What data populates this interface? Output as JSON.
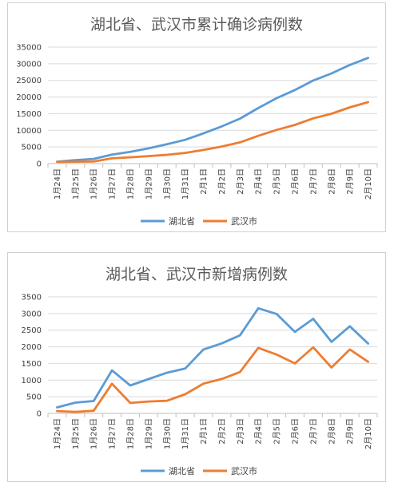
{
  "colors": {
    "hubei": "#5b9bd5",
    "wuhan": "#ed7d31",
    "grid": "#d9d9d9",
    "text": "#595959"
  },
  "chart_data": [
    {
      "type": "line",
      "title": "湖北省、武汉市累计确诊病例数",
      "categories": [
        "1月24日",
        "1月25日",
        "1月26日",
        "1月27日",
        "1月28日",
        "1月29日",
        "1月30日",
        "1月31日",
        "2月1日",
        "2月2日",
        "2月3日",
        "2月4日",
        "2月5日",
        "2月6日",
        "2月7日",
        "2月8日",
        "2月9日",
        "2月10日"
      ],
      "ylim": [
        0,
        35000
      ],
      "yticks": [
        0,
        5000,
        10000,
        15000,
        20000,
        25000,
        30000,
        35000
      ],
      "grid": true,
      "legend": "bottom",
      "series": [
        {
          "name": "湖北省",
          "values": [
            549,
            1052,
            1423,
            2714,
            3554,
            4586,
            5806,
            7153,
            9074,
            11177,
            13522,
            16678,
            19665,
            22112,
            24953,
            27100,
            29631,
            31728
          ]
        },
        {
          "name": "武汉市",
          "values": [
            495,
            572,
            618,
            1590,
            1905,
            2261,
            2639,
            3215,
            4109,
            5142,
            6384,
            8351,
            10117,
            11618,
            13603,
            14982,
            16902,
            18454
          ]
        }
      ]
    },
    {
      "type": "line",
      "title": "湖北省、武汉市新增病例数",
      "categories": [
        "1月24日",
        "1月25日",
        "1月26日",
        "1月27日",
        "1月28日",
        "1月29日",
        "1月30日",
        "1月31日",
        "2月1日",
        "2月2日",
        "2月3日",
        "2月4日",
        "2月5日",
        "2月6日",
        "2月7日",
        "2月8日",
        "2月9日",
        "2月10日"
      ],
      "ylim": [
        0,
        3500
      ],
      "yticks": [
        0,
        500,
        1000,
        1500,
        2000,
        2500,
        3000,
        3500
      ],
      "grid": true,
      "legend": "bottom",
      "series": [
        {
          "name": "湖北省",
          "values": [
            180,
            323,
            371,
            1291,
            840,
            1032,
            1220,
            1347,
            1921,
            2103,
            2345,
            3156,
            2987,
            2447,
            2841,
            2147,
            2618,
            2097
          ]
        },
        {
          "name": "武汉市",
          "values": [
            70,
            46,
            80,
            892,
            315,
            356,
            378,
            576,
            894,
            1033,
            1242,
            1967,
            1766,
            1501,
            1985,
            1379,
            1920,
            1552
          ]
        }
      ]
    }
  ]
}
